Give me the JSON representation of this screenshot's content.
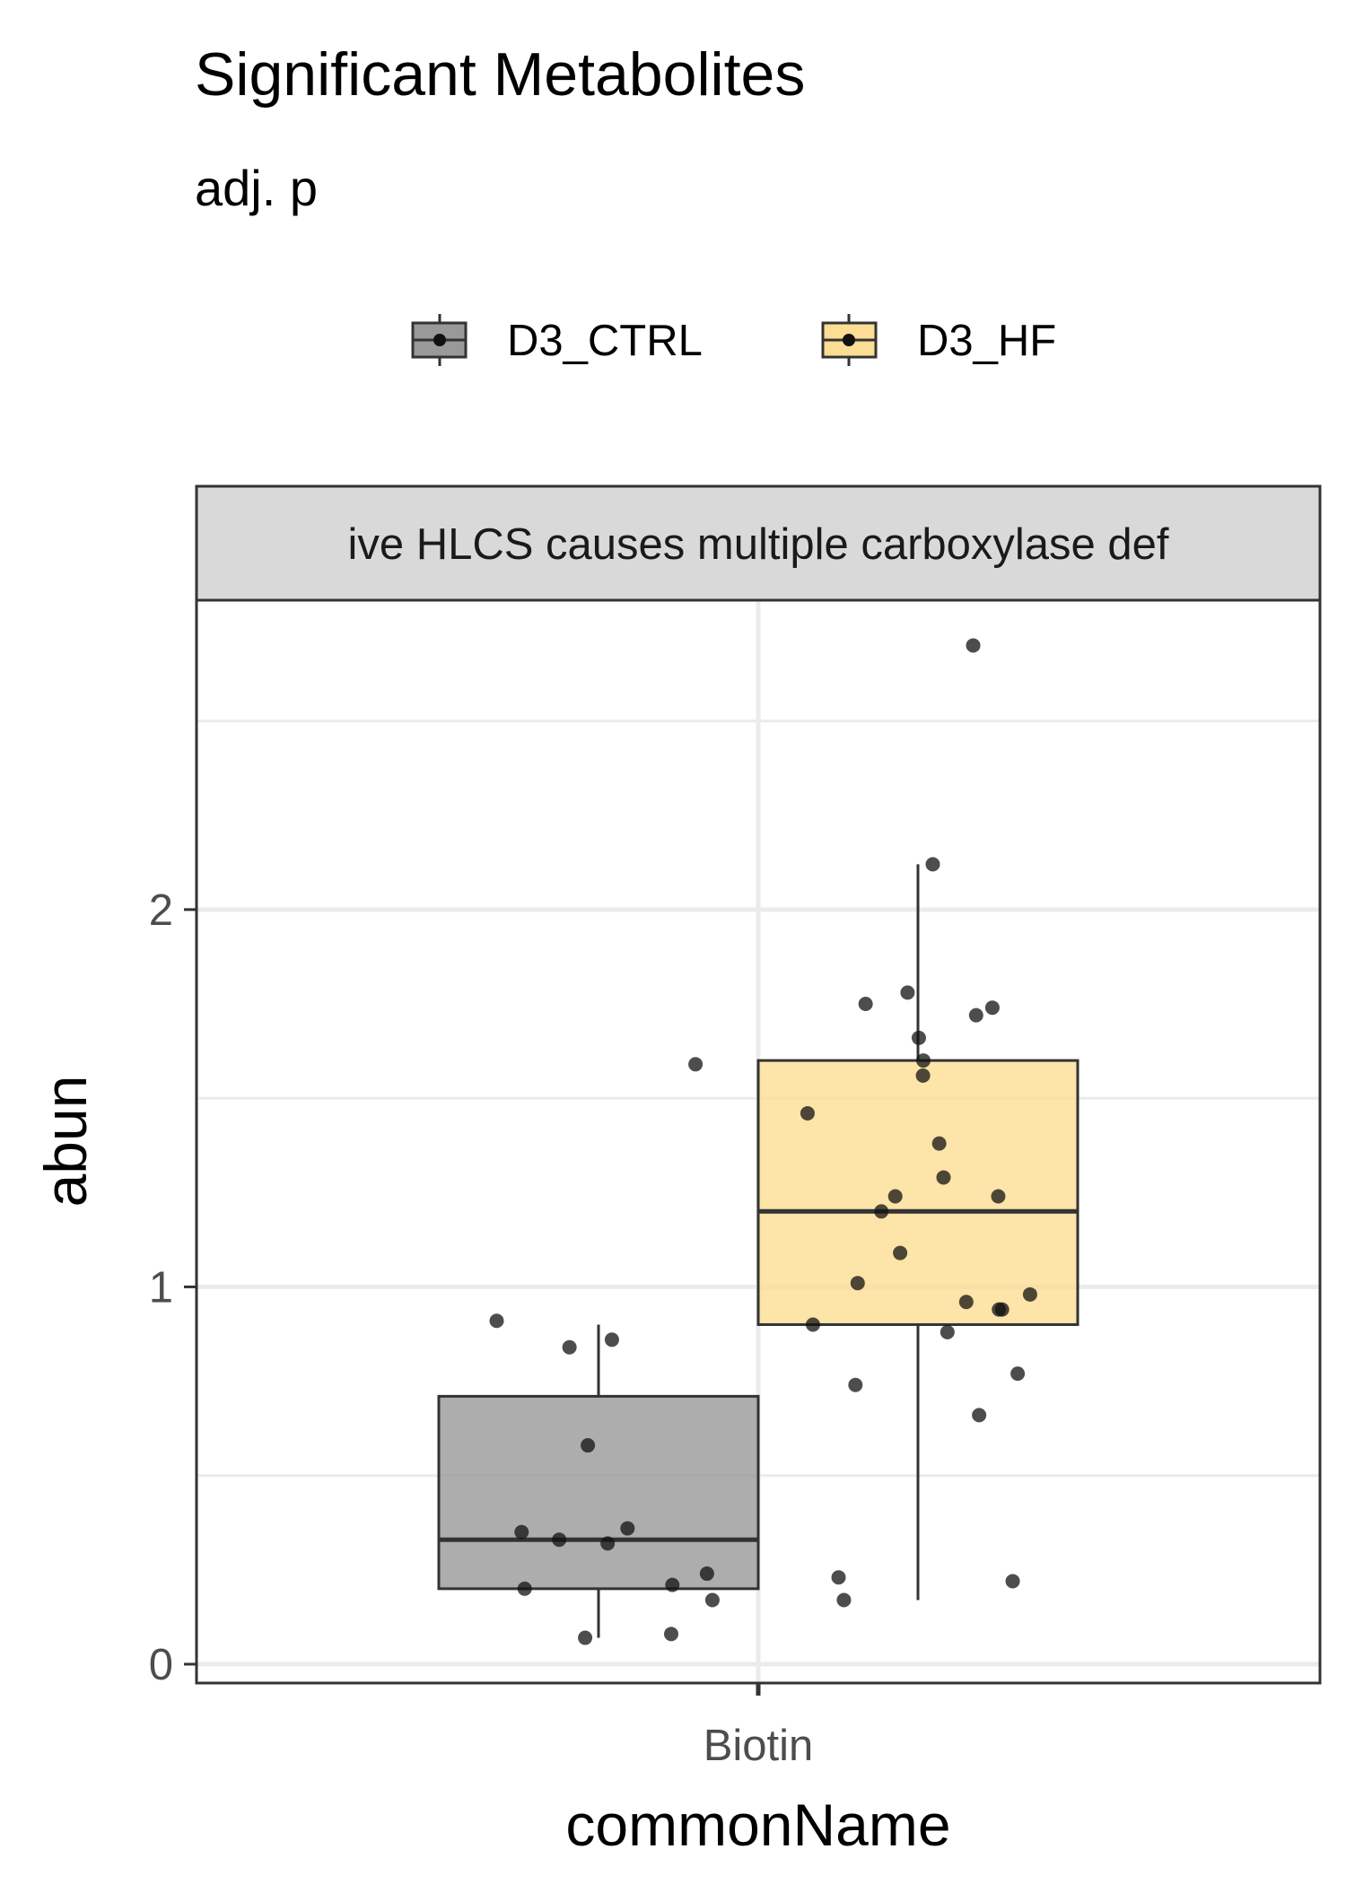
{
  "chart_data": {
    "type": "box",
    "title": "Significant Metabolites",
    "subtitle": "adj. p",
    "facet_label": "ive HLCS causes multiple carboxylase def",
    "xlabel": "commonName",
    "ylabel": "abun",
    "categories": [
      "Biotin"
    ],
    "ylim": [
      -0.05,
      2.82
    ],
    "yticks": [
      0,
      1,
      2
    ],
    "grid": true,
    "legend_position": "top",
    "series": [
      {
        "name": "D3_CTRL",
        "color": "#7f7f7f",
        "box": {
          "q1": 0.2,
          "median": 0.33,
          "q3": 0.71,
          "whisker_low": 0.07,
          "whisker_high": 0.9
        },
        "points": [
          1.59,
          0.91,
          0.86,
          0.84,
          0.58,
          0.36,
          0.35,
          0.33,
          0.32,
          0.24,
          0.21,
          0.2,
          0.17,
          0.08,
          0.07
        ]
      },
      {
        "name": "D3_HF",
        "color": "#fbcd61",
        "box": {
          "q1": 0.9,
          "median": 1.2,
          "q3": 1.6,
          "whisker_low": 0.17,
          "whisker_high": 2.12
        },
        "points": [
          2.7,
          2.12,
          1.78,
          1.75,
          1.74,
          1.72,
          1.66,
          1.6,
          1.56,
          1.46,
          1.38,
          1.29,
          1.24,
          1.24,
          1.2,
          1.09,
          1.01,
          0.98,
          0.96,
          0.94,
          0.94,
          0.9,
          0.88,
          0.77,
          0.74,
          0.66,
          0.23,
          0.22,
          0.17
        ]
      }
    ]
  }
}
